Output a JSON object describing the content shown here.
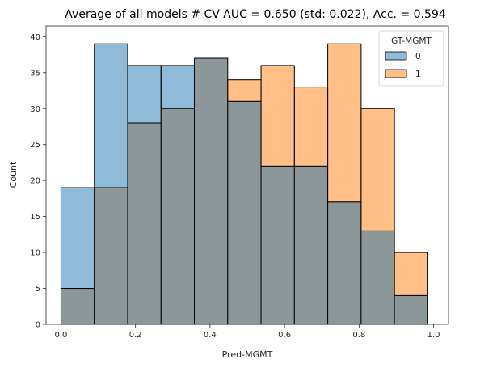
{
  "chart_data": {
    "type": "histogram",
    "title": "Average of all models # CV AUC = 0.650 (std: 0.022), Acc. = 0.594",
    "xlabel": "Pred-MGMT",
    "ylabel": "Count",
    "xlim": [
      -0.04,
      1.04
    ],
    "ylim": [
      0,
      41.5
    ],
    "xticks": [
      0.0,
      0.2,
      0.4,
      0.6,
      0.8,
      1.0
    ],
    "xtick_labels": [
      "0.0",
      "0.2",
      "0.4",
      "0.6",
      "0.8",
      "1.0"
    ],
    "yticks": [
      0,
      5,
      10,
      15,
      20,
      25,
      30,
      35,
      40
    ],
    "ytick_labels": [
      "0",
      "5",
      "10",
      "15",
      "20",
      "25",
      "30",
      "35",
      "40"
    ],
    "bin_edges": [
      0.0,
      0.0895,
      0.179,
      0.2685,
      0.358,
      0.4475,
      0.537,
      0.6265,
      0.716,
      0.8055,
      0.895,
      0.9845
    ],
    "series": [
      {
        "name": "0",
        "color": "#1f77b4",
        "values": [
          19,
          39,
          36,
          36,
          37,
          31,
          22,
          22,
          17,
          13,
          4
        ]
      },
      {
        "name": "1",
        "color": "#ff7f0e",
        "values": [
          5,
          19,
          28,
          30,
          37,
          34,
          36,
          33,
          39,
          30,
          10
        ]
      }
    ],
    "overlap_color": "#8c979a",
    "legend": {
      "title": "GT-MGMT",
      "position": "top-right"
    },
    "grid": false
  }
}
